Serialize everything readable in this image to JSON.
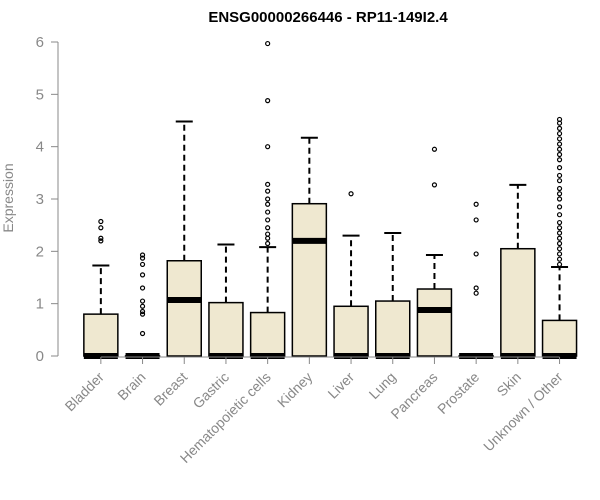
{
  "chart_data": {
    "type": "box",
    "title": "ENSG00000266446 - RP11-149I2.4",
    "xlabel": "",
    "ylabel": "Expression",
    "ylim": [
      0,
      6
    ],
    "yticks": [
      0,
      1,
      2,
      3,
      4,
      5,
      6
    ],
    "grid": false,
    "box_fill": "#efe8d0",
    "categories": [
      "Bladder",
      "Brain",
      "Breast",
      "Gastric",
      "Hematopoietic cells",
      "Kidney",
      "Liver",
      "Lung",
      "Pancreas",
      "Prostate",
      "Skin",
      "Unknown / Other"
    ],
    "boxes": [
      {
        "q1": 0,
        "median": 0,
        "q3": 0.8,
        "whisker_low": 0,
        "whisker_high": 1.73,
        "outliers": [
          2.2,
          2.25,
          2.45,
          2.57
        ]
      },
      {
        "q1": 0,
        "median": 0,
        "q3": 0,
        "whisker_low": 0,
        "whisker_high": 0,
        "outliers": [
          0.43,
          0.8,
          0.85,
          0.95,
          1.05,
          1.3,
          1.55,
          1.75,
          1.87,
          1.93
        ]
      },
      {
        "q1": 0,
        "median": 1.07,
        "q3": 1.82,
        "whisker_low": 0,
        "whisker_high": 4.48,
        "outliers": []
      },
      {
        "q1": 0,
        "median": 0,
        "q3": 1.02,
        "whisker_low": 0,
        "whisker_high": 2.13,
        "outliers": []
      },
      {
        "q1": 0,
        "median": 0,
        "q3": 0.83,
        "whisker_low": 0,
        "whisker_high": 2.08,
        "outliers": [
          2.15,
          2.25,
          2.33,
          2.45,
          2.6,
          2.75,
          2.9,
          3.0,
          3.15,
          3.28,
          4.0,
          4.88,
          5.97
        ]
      },
      {
        "q1": 0,
        "median": 2.2,
        "q3": 2.91,
        "whisker_low": 0,
        "whisker_high": 4.17,
        "outliers": []
      },
      {
        "q1": 0,
        "median": 0,
        "q3": 0.95,
        "whisker_low": 0,
        "whisker_high": 2.3,
        "outliers": [
          3.1
        ]
      },
      {
        "q1": 0,
        "median": 0,
        "q3": 1.05,
        "whisker_low": 0,
        "whisker_high": 2.35,
        "outliers": []
      },
      {
        "q1": 0,
        "median": 0.88,
        "q3": 1.28,
        "whisker_low": 0,
        "whisker_high": 1.93,
        "outliers": [
          3.27,
          3.95
        ]
      },
      {
        "q1": 0,
        "median": 0,
        "q3": 0,
        "whisker_low": 0,
        "whisker_high": 0,
        "outliers": [
          1.2,
          1.3,
          1.95,
          2.6,
          2.9
        ]
      },
      {
        "q1": 0,
        "median": 0,
        "q3": 2.05,
        "whisker_low": 0,
        "whisker_high": 3.27,
        "outliers": []
      },
      {
        "q1": 0,
        "median": 0,
        "q3": 0.68,
        "whisker_low": 0,
        "whisker_high": 1.7,
        "outliers": [
          1.75,
          1.85,
          1.95,
          2.05,
          2.15,
          2.25,
          2.35,
          2.45,
          2.55,
          2.7,
          2.85,
          3.0,
          3.1,
          3.2,
          3.35,
          3.45,
          3.6,
          3.75,
          3.85,
          3.95,
          4.05,
          4.15,
          4.25,
          4.35,
          4.45,
          4.52
        ]
      }
    ]
  }
}
